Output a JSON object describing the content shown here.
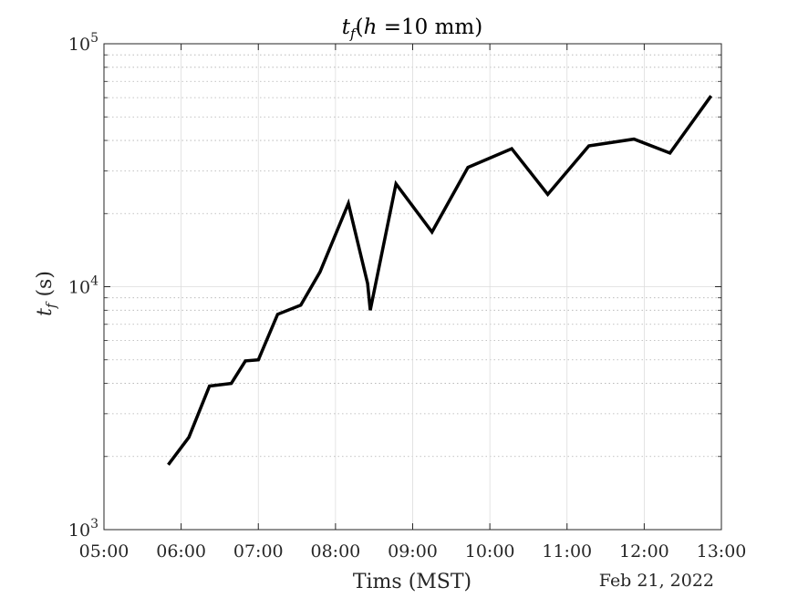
{
  "chart_data": {
    "type": "line",
    "title_parts": {
      "var": "t",
      "sub": "f",
      "open": "(",
      "arg": "h",
      "rest": " =10 mm)"
    },
    "xlabel": "Tims (MST)",
    "ylabel_parts": {
      "var": "t",
      "sub": "f",
      "unit": " (s)"
    },
    "date_label": "Feb 21, 2022",
    "y_scale": "log",
    "ylim": [
      1000,
      100000
    ],
    "y_tick_labels": [
      {
        "base": "10",
        "exp": "3",
        "value": 1000
      },
      {
        "base": "10",
        "exp": "4",
        "value": 10000
      },
      {
        "base": "10",
        "exp": "5",
        "value": 100000
      }
    ],
    "xlim": [
      "05:00",
      "13:00"
    ],
    "x_ticks": [
      "05:00",
      "06:00",
      "07:00",
      "08:00",
      "09:00",
      "10:00",
      "11:00",
      "12:00",
      "13:00"
    ],
    "grid": true,
    "line_color": "#000000",
    "series": [
      {
        "x": [
          "05:50",
          "06:06",
          "06:22",
          "06:39",
          "06:50",
          "07:00",
          "07:15",
          "07:33",
          "07:48",
          "08:10",
          "08:25",
          "08:27",
          "08:47",
          "09:15",
          "09:43",
          "10:17",
          "10:45",
          "11:17",
          "11:52",
          "12:20",
          "12:52"
        ],
        "y": [
          1850,
          2400,
          3900,
          4000,
          4950,
          5000,
          7700,
          8400,
          11500,
          22000,
          10300,
          8000,
          26500,
          16800,
          31000,
          37000,
          24000,
          38000,
          40500,
          35500,
          61000
        ]
      }
    ]
  }
}
